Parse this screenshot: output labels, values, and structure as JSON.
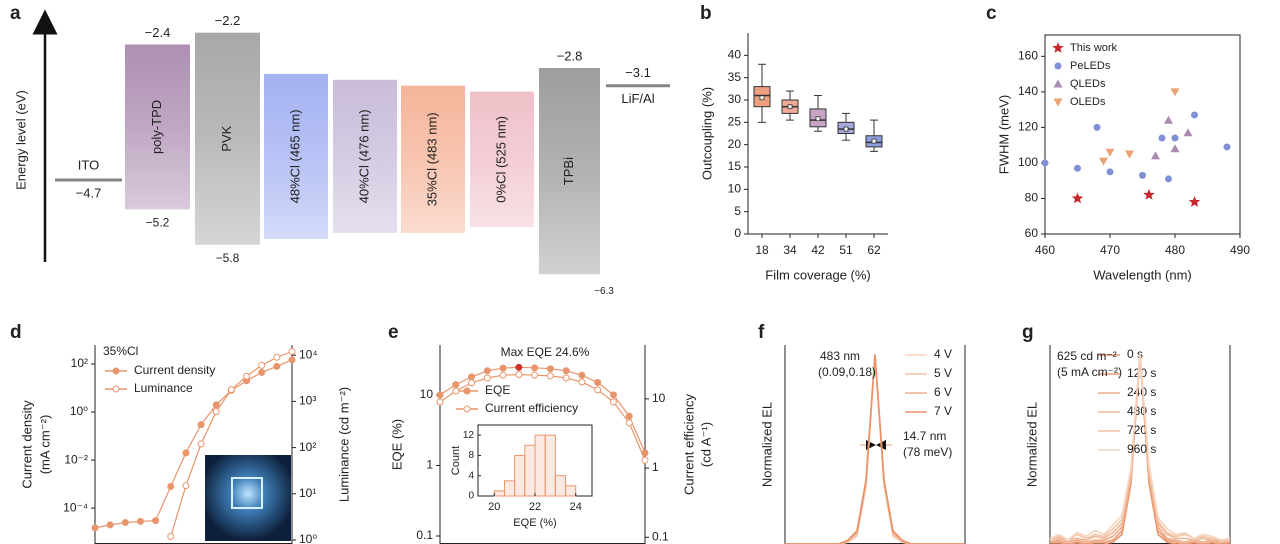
{
  "chart_data": [
    {
      "type": "energy-level",
      "label": "a",
      "ylabel": "Energy level (eV)",
      "ylim": [
        -6.5,
        -1.9
      ],
      "layers": [
        {
          "name": "ITO",
          "kind": "line",
          "values": [
            -4.7
          ],
          "value_labels": [
            "−4.7"
          ],
          "color": "#858585"
        },
        {
          "name": "poly-TPD",
          "values": [
            -2.4,
            -5.2
          ],
          "value_labels": [
            "−2.4",
            "−5.2"
          ],
          "color": "#a98aae"
        },
        {
          "name": "PVK",
          "values": [
            -2.2,
            -5.8
          ],
          "value_labels": [
            "−2.2",
            "−5.8"
          ],
          "color": "#a3a3a3"
        },
        {
          "name": "48%Cl (465 nm)",
          "values": [
            -2.9,
            -5.7
          ],
          "color": "#9fadf2"
        },
        {
          "name": "40%Cl (476 nm)",
          "values": [
            -3.0,
            -5.6
          ],
          "color": "#c6b9d8"
        },
        {
          "name": "35%Cl (483 nm)",
          "values": [
            -3.1,
            -5.6
          ],
          "color": "#f5b195"
        },
        {
          "name": "0%Cl (525 nm)",
          "values": [
            -3.2,
            -5.5
          ],
          "color": "#efbdc6"
        },
        {
          "name": "TPBi",
          "values": [
            -2.8,
            -6.3
          ],
          "value_labels": [
            "−2.8",
            "−6.3"
          ],
          "color": "#989898"
        },
        {
          "name": "LiF/Al",
          "kind": "line",
          "values": [
            -3.1
          ],
          "value_labels": [
            "−3.1"
          ],
          "color": "#858585"
        }
      ]
    },
    {
      "type": "box",
      "label": "b",
      "xlabel": "Film coverage (%)",
      "ylabel": "Outcoupling (%)",
      "categories": [
        "18",
        "34",
        "42",
        "51",
        "62"
      ],
      "colors": [
        "#eea080",
        "#f0aa95",
        "#c9a3c4",
        "#a6a8dc",
        "#8e9fe0"
      ],
      "boxes": [
        {
          "whisker_low": 25,
          "q1": 28.5,
          "median": 31,
          "q3": 33,
          "whisker_high": 38,
          "mean": 30.5
        },
        {
          "whisker_low": 25.5,
          "q1": 27,
          "median": 28.5,
          "q3": 30,
          "whisker_high": 32,
          "mean": 28.5
        },
        {
          "whisker_low": 23,
          "q1": 24,
          "median": 25.5,
          "q3": 28,
          "whisker_high": 31,
          "mean": 25.8
        },
        {
          "whisker_low": 21,
          "q1": 22.5,
          "median": 23.5,
          "q3": 25,
          "whisker_high": 27,
          "mean": 23.5
        },
        {
          "whisker_low": 18.5,
          "q1": 19.5,
          "median": 20.5,
          "q3": 22,
          "whisker_high": 25.5,
          "mean": 20.8
        }
      ],
      "ylim": [
        0,
        45
      ],
      "yticks": [
        0,
        5,
        10,
        15,
        20,
        25,
        30,
        35,
        40
      ]
    },
    {
      "type": "scatter",
      "label": "c",
      "xlabel": "Wavelength (nm)",
      "ylabel": "FWHM (meV)",
      "xlim": [
        460,
        490
      ],
      "xticks": [
        460,
        470,
        480,
        490
      ],
      "ylim": [
        60,
        172
      ],
      "yticks": [
        60,
        80,
        100,
        120,
        140,
        160
      ],
      "legend": "top-left",
      "series": [
        {
          "name": "This work",
          "marker": "star",
          "color": "#c8262c",
          "x": [
            465,
            476,
            483
          ],
          "values": [
            80,
            82,
            78
          ]
        },
        {
          "name": "PeLEDs",
          "marker": "circle",
          "color": "#7f90d6",
          "x": [
            460,
            465,
            468,
            470,
            475,
            478,
            479,
            480,
            483,
            488
          ],
          "values": [
            100,
            97,
            120,
            95,
            93,
            114,
            91,
            114,
            127,
            109
          ]
        },
        {
          "name": "QLEDs",
          "marker": "triangle-up",
          "color": "#a98bb0",
          "x": [
            477,
            479,
            480,
            482
          ],
          "values": [
            104,
            124,
            108,
            117
          ]
        },
        {
          "name": "OLEDs",
          "marker": "triangle-down",
          "color": "#eba173",
          "x": [
            469,
            470,
            473,
            480
          ],
          "values": [
            101,
            106,
            105,
            140
          ]
        }
      ]
    },
    {
      "type": "line",
      "label": "d",
      "log_scale": true,
      "markers": true,
      "legend": "top-left",
      "ylabel": [
        "Current density",
        "(mA cm⁻²)"
      ],
      "y2label": [
        "Luminance (cd m⁻²)"
      ],
      "annotations": [
        "35%Cl"
      ],
      "categories": [
        null,
        null,
        null,
        null,
        null,
        null,
        null,
        null,
        null,
        null,
        null,
        null,
        null,
        null
      ],
      "ylim": [
        3.2e-06,
        620
      ],
      "yticks": [
        {
          "value": 0.0001,
          "label": "10⁻⁴"
        },
        {
          "value": 0.01,
          "label": "10⁻²"
        },
        {
          "value": 1,
          "label": "10⁰"
        },
        {
          "value": 100,
          "label": "10²"
        }
      ],
      "y2lim": [
        0.82,
        16600
      ],
      "y2ticks": [
        {
          "value": 1,
          "label": "10⁰"
        },
        {
          "value": 10,
          "label": "10¹"
        },
        {
          "value": 100,
          "label": "10²"
        },
        {
          "value": 1000,
          "label": "10³"
        },
        {
          "value": 10000,
          "label": "10⁴"
        }
      ],
      "series": [
        {
          "name": "Current density",
          "marker": "filled",
          "color": "#e9956c",
          "values": [
            1.5e-05,
            2e-05,
            2.5e-05,
            2.8e-05,
            3e-05,
            0.0008,
            0.02,
            0.3,
            2,
            8,
            20,
            45,
            80,
            150
          ]
        },
        {
          "name": "Luminance",
          "marker": "open",
          "axis": "y2",
          "color": "#e9956c",
          "values": [
            null,
            null,
            null,
            null,
            null,
            1.2,
            15,
            120,
            600,
            1800,
            3500,
            6000,
            9000,
            12000
          ]
        }
      ]
    },
    {
      "type": "line",
      "label": "e",
      "log_scale": true,
      "markers": true,
      "legend": "top-left",
      "ylabel": [
        "EQE (%)"
      ],
      "y2label": [
        "Current efficiency",
        "(cd A⁻¹)"
      ],
      "annotations": [
        "Max EQE 24.6%"
      ],
      "highlight": {
        "series": 0,
        "index": 5,
        "color": "#d0302b"
      },
      "categories": [
        null,
        null,
        null,
        null,
        null,
        null,
        null,
        null,
        null,
        null,
        null,
        null,
        null,
        null
      ],
      "ylim": [
        0.077,
        51
      ],
      "yticks": [
        0.1,
        1,
        10
      ],
      "y2lim": [
        0.08,
        60
      ],
      "y2ticks": [
        0.1,
        1,
        10
      ],
      "series": [
        {
          "name": "EQE",
          "marker": "filled",
          "color": "#e9956c",
          "values": [
            10,
            14,
            18,
            22,
            24,
            24.6,
            24.2,
            23.5,
            22,
            19,
            15,
            10,
            5,
            1.5
          ]
        },
        {
          "name": "Current efficiency",
          "marker": "open",
          "axis": "y2",
          "color": "#e9956c",
          "values": [
            9,
            13,
            17,
            20,
            22,
            22.5,
            22,
            21.5,
            20,
            17.5,
            13.5,
            9,
            4.5,
            1.3
          ]
        }
      ],
      "inset": {
        "type": "histogram",
        "xlabel": "EQE (%)",
        "ylabel": "Count",
        "color": "#e9956c",
        "bins": [
          20,
          20.5,
          21,
          21.5,
          22,
          22.5,
          23,
          23.5,
          24
        ],
        "values": [
          1,
          3,
          8,
          10,
          12,
          12,
          4,
          2
        ],
        "xlim": [
          19.2,
          24.8
        ],
        "xticks": [
          20,
          22,
          24
        ],
        "ylim": [
          0,
          14
        ],
        "yticks": [
          0,
          4,
          8,
          12
        ]
      }
    },
    {
      "type": "line",
      "label": "f",
      "legend": "top-right",
      "ylabel": [
        "Normalized EL"
      ],
      "annotations": [
        "483 nm",
        "(0.09,0.18)",
        "14.7 nm",
        "(78 meV)"
      ],
      "categories": [
        null,
        null,
        null,
        null,
        null,
        null,
        null,
        null,
        null,
        null,
        null,
        null,
        null,
        null,
        null,
        null,
        null,
        null,
        null,
        null,
        null
      ],
      "ylim": [
        0,
        1.05
      ],
      "series": [
        {
          "name": "4 V",
          "color": "#f7d3bd",
          "values": [
            0,
            0,
            0,
            0,
            0,
            0,
            0,
            0.01,
            0.04,
            0.3,
            1,
            0.32,
            0.04,
            0.01,
            0,
            0,
            0,
            0,
            0,
            0,
            0
          ]
        },
        {
          "name": "5 V",
          "color": "#f4c3a5",
          "values": [
            0,
            0,
            0,
            0,
            0,
            0,
            0,
            0.01,
            0.05,
            0.31,
            1,
            0.31,
            0.05,
            0.01,
            0,
            0,
            0,
            0,
            0,
            0,
            0
          ]
        },
        {
          "name": "6 V",
          "color": "#efad88",
          "values": [
            0,
            0,
            0,
            0,
            0,
            0,
            0,
            0.02,
            0.06,
            0.33,
            1,
            0.33,
            0.06,
            0.02,
            0,
            0,
            0,
            0,
            0,
            0,
            0
          ]
        },
        {
          "name": "7 V",
          "color": "#e8946a",
          "values": [
            0,
            0,
            0,
            0,
            0,
            0,
            0,
            0.02,
            0.07,
            0.34,
            1,
            0.34,
            0.07,
            0.02,
            0,
            0,
            0,
            0,
            0,
            0,
            0
          ]
        }
      ]
    },
    {
      "type": "line",
      "label": "g",
      "legend": "top-right",
      "ylabel": [
        "Normalized EL"
      ],
      "annotations": [
        "625 cd m⁻²",
        "(5 mA cm⁻²)"
      ],
      "categories": [
        null,
        null,
        null,
        null,
        null,
        null,
        null,
        null,
        null,
        null,
        null,
        null,
        null,
        null,
        null,
        null,
        null,
        null,
        null,
        null,
        null
      ],
      "ylim": [
        0,
        1.05
      ],
      "series": [
        {
          "name": "0 s",
          "color": "#e8946a",
          "values": [
            0,
            0,
            0,
            0,
            0,
            0,
            0,
            0.01,
            0.05,
            0.32,
            1,
            0.32,
            0.05,
            0.01,
            0,
            0,
            0,
            0,
            0,
            0,
            0
          ]
        },
        {
          "name": "120 s",
          "color": "#eb9f79",
          "values": [
            0.01,
            0.01,
            0,
            0.01,
            0,
            0.01,
            0.01,
            0.02,
            0.07,
            0.34,
            1,
            0.34,
            0.07,
            0.02,
            0.01,
            0,
            0.01,
            0,
            0.01,
            0,
            0.01
          ]
        },
        {
          "name": "240 s",
          "color": "#eeab89",
          "values": [
            0.01,
            0.02,
            0.01,
            0.02,
            0.01,
            0.02,
            0.02,
            0.04,
            0.09,
            0.35,
            1,
            0.36,
            0.09,
            0.03,
            0.02,
            0.01,
            0.02,
            0.01,
            0.02,
            0.01,
            0.01
          ]
        },
        {
          "name": "480 s",
          "color": "#f0b797",
          "values": [
            0.02,
            0.03,
            0.02,
            0.03,
            0.02,
            0.04,
            0.03,
            0.06,
            0.11,
            0.37,
            1,
            0.38,
            0.11,
            0.05,
            0.03,
            0.03,
            0.02,
            0.03,
            0.02,
            0.02,
            0.02
          ]
        },
        {
          "name": "720 s",
          "color": "#f3c4a8",
          "values": [
            0.02,
            0.04,
            0.02,
            0.05,
            0.03,
            0.05,
            0.04,
            0.08,
            0.13,
            0.39,
            1,
            0.4,
            0.12,
            0.06,
            0.04,
            0.05,
            0.03,
            0.04,
            0.03,
            0.02,
            0.02
          ]
        },
        {
          "name": "960 s",
          "color": "#f6d3bd",
          "values": [
            0.03,
            0.05,
            0.02,
            0.06,
            0.04,
            0.07,
            0.05,
            0.1,
            0.15,
            0.4,
            1,
            0.42,
            0.14,
            0.08,
            0.05,
            0.06,
            0.03,
            0.05,
            0.04,
            0.02,
            0.03
          ]
        }
      ]
    }
  ]
}
